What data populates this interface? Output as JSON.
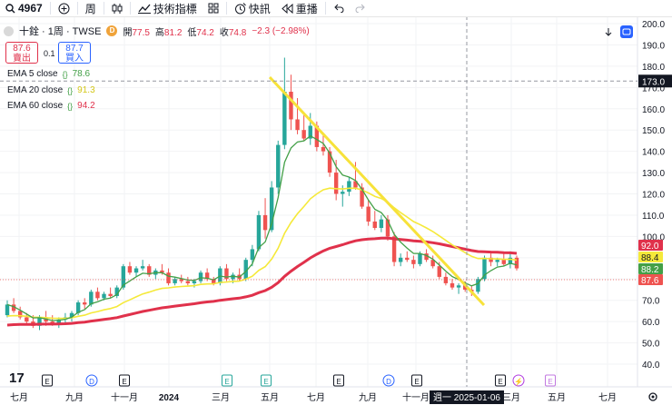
{
  "toolbar": {
    "symbol": "4967",
    "interval": "周",
    "indicators_label": "技術指標",
    "alerts_label": "快訊",
    "replay_label": "重播"
  },
  "legend": {
    "title": "十銓 · 1周 · TWSE",
    "badge": "D",
    "open_label": "開",
    "open": "77.5",
    "high_label": "高",
    "high": "81.2",
    "low_label": "低",
    "low": "74.2",
    "close_label": "收",
    "close": "74.8",
    "change": "−2.3 (−2.98%)"
  },
  "quote": {
    "sell_price": "87.6",
    "sell_label": "賣出",
    "spread": "0.1",
    "buy_price": "87.7",
    "buy_label": "買入"
  },
  "ema": [
    {
      "name": "EMA 5 close",
      "value": "78.6",
      "color": "#43a047"
    },
    {
      "name": "EMA 20 close",
      "value": "91.3",
      "color": "#f5e93a"
    },
    {
      "name": "EMA 60 close",
      "value": "94.2",
      "color": "#e0314b"
    }
  ],
  "crosshair": {
    "date_label": "週一  2025-01-06",
    "price_label": "173.0"
  },
  "colors": {
    "up": "#26a69a",
    "down": "#ef5350",
    "ema5": "#43a047",
    "ema20": "#f5e93a",
    "ema60": "#e0314b",
    "trendline": "#f7e23a"
  },
  "chart_data": {
    "type": "candlestick",
    "x_axis_ticks": [
      "七月",
      "九月",
      "十一月",
      "2024",
      "三月",
      "五月",
      "七月",
      "九月",
      "十一月",
      "三月",
      "五月",
      "七月"
    ],
    "y_axis_ticks": [
      40,
      50,
      60,
      70,
      80,
      90,
      100,
      110,
      120,
      130,
      140,
      150,
      160,
      170,
      180,
      190,
      200
    ],
    "ylim": [
      40,
      200
    ],
    "last_values": {
      "ema20": 92.0,
      "ema5": 88.4,
      "close_high": 88.2,
      "sell": 87.6
    },
    "candles": [
      {
        "o": 63,
        "h": 70,
        "l": 62,
        "c": 68
      },
      {
        "o": 68,
        "h": 71,
        "l": 64,
        "c": 65
      },
      {
        "o": 65,
        "h": 67,
        "l": 61,
        "c": 62
      },
      {
        "o": 62,
        "h": 64,
        "l": 59,
        "c": 60
      },
      {
        "o": 60,
        "h": 63,
        "l": 57,
        "c": 58
      },
      {
        "o": 58,
        "h": 63,
        "l": 56,
        "c": 62
      },
      {
        "o": 62,
        "h": 65,
        "l": 58,
        "c": 60
      },
      {
        "o": 60,
        "h": 63,
        "l": 58,
        "c": 59
      },
      {
        "o": 59,
        "h": 62,
        "l": 57,
        "c": 61
      },
      {
        "o": 61,
        "h": 64,
        "l": 59,
        "c": 62
      },
      {
        "o": 62,
        "h": 65,
        "l": 60,
        "c": 64
      },
      {
        "o": 64,
        "h": 70,
        "l": 63,
        "c": 69
      },
      {
        "o": 69,
        "h": 71,
        "l": 66,
        "c": 68
      },
      {
        "o": 68,
        "h": 75,
        "l": 67,
        "c": 74
      },
      {
        "o": 74,
        "h": 76,
        "l": 70,
        "c": 71
      },
      {
        "o": 71,
        "h": 74,
        "l": 70,
        "c": 73
      },
      {
        "o": 73,
        "h": 76,
        "l": 71,
        "c": 72
      },
      {
        "o": 72,
        "h": 77,
        "l": 71,
        "c": 76
      },
      {
        "o": 76,
        "h": 87,
        "l": 75,
        "c": 86
      },
      {
        "o": 86,
        "h": 88,
        "l": 82,
        "c": 83
      },
      {
        "o": 83,
        "h": 86,
        "l": 81,
        "c": 85
      },
      {
        "o": 85,
        "h": 89,
        "l": 84,
        "c": 86
      },
      {
        "o": 86,
        "h": 87,
        "l": 81,
        "c": 82
      },
      {
        "o": 82,
        "h": 85,
        "l": 80,
        "c": 84
      },
      {
        "o": 84,
        "h": 87,
        "l": 82,
        "c": 83
      },
      {
        "o": 83,
        "h": 85,
        "l": 77,
        "c": 78
      },
      {
        "o": 78,
        "h": 81,
        "l": 77,
        "c": 80
      },
      {
        "o": 80,
        "h": 82,
        "l": 78,
        "c": 79
      },
      {
        "o": 79,
        "h": 81,
        "l": 77,
        "c": 78
      },
      {
        "o": 78,
        "h": 80,
        "l": 76,
        "c": 79
      },
      {
        "o": 79,
        "h": 84,
        "l": 78,
        "c": 83
      },
      {
        "o": 83,
        "h": 85,
        "l": 79,
        "c": 80
      },
      {
        "o": 80,
        "h": 81,
        "l": 77,
        "c": 78
      },
      {
        "o": 78,
        "h": 86,
        "l": 77,
        "c": 85
      },
      {
        "o": 85,
        "h": 87,
        "l": 79,
        "c": 80
      },
      {
        "o": 80,
        "h": 83,
        "l": 78,
        "c": 82
      },
      {
        "o": 82,
        "h": 85,
        "l": 79,
        "c": 80
      },
      {
        "o": 80,
        "h": 90,
        "l": 79,
        "c": 89
      },
      {
        "o": 89,
        "h": 96,
        "l": 86,
        "c": 94
      },
      {
        "o": 94,
        "h": 112,
        "l": 93,
        "c": 110
      },
      {
        "o": 110,
        "h": 118,
        "l": 99,
        "c": 103
      },
      {
        "o": 103,
        "h": 126,
        "l": 102,
        "c": 123
      },
      {
        "o": 123,
        "h": 145,
        "l": 120,
        "c": 143
      },
      {
        "o": 143,
        "h": 184,
        "l": 141,
        "c": 168
      },
      {
        "o": 168,
        "h": 176,
        "l": 150,
        "c": 155
      },
      {
        "o": 155,
        "h": 165,
        "l": 148,
        "c": 150
      },
      {
        "o": 150,
        "h": 157,
        "l": 145,
        "c": 146
      },
      {
        "o": 146,
        "h": 158,
        "l": 143,
        "c": 152
      },
      {
        "o": 152,
        "h": 154,
        "l": 140,
        "c": 142
      },
      {
        "o": 142,
        "h": 148,
        "l": 138,
        "c": 140
      },
      {
        "o": 140,
        "h": 142,
        "l": 128,
        "c": 130
      },
      {
        "o": 130,
        "h": 136,
        "l": 117,
        "c": 120
      },
      {
        "o": 120,
        "h": 124,
        "l": 114,
        "c": 121
      },
      {
        "o": 121,
        "h": 128,
        "l": 119,
        "c": 126
      },
      {
        "o": 126,
        "h": 135,
        "l": 122,
        "c": 123
      },
      {
        "o": 123,
        "h": 125,
        "l": 113,
        "c": 114
      },
      {
        "o": 114,
        "h": 117,
        "l": 105,
        "c": 107
      },
      {
        "o": 107,
        "h": 112,
        "l": 103,
        "c": 104
      },
      {
        "o": 104,
        "h": 110,
        "l": 102,
        "c": 108
      },
      {
        "o": 108,
        "h": 110,
        "l": 98,
        "c": 100
      },
      {
        "o": 100,
        "h": 102,
        "l": 86,
        "c": 88
      },
      {
        "o": 88,
        "h": 92,
        "l": 86,
        "c": 90
      },
      {
        "o": 90,
        "h": 93,
        "l": 88,
        "c": 89
      },
      {
        "o": 89,
        "h": 91,
        "l": 85,
        "c": 87
      },
      {
        "o": 87,
        "h": 93,
        "l": 86,
        "c": 92
      },
      {
        "o": 92,
        "h": 94,
        "l": 88,
        "c": 89
      },
      {
        "o": 89,
        "h": 91,
        "l": 85,
        "c": 86
      },
      {
        "o": 86,
        "h": 88,
        "l": 80,
        "c": 81
      },
      {
        "o": 81,
        "h": 83,
        "l": 77,
        "c": 78
      },
      {
        "o": 78,
        "h": 80,
        "l": 75,
        "c": 76
      },
      {
        "o": 76,
        "h": 78,
        "l": 73,
        "c": 77
      },
      {
        "o": 77,
        "h": 79,
        "l": 74,
        "c": 75
      },
      {
        "o": 75,
        "h": 77,
        "l": 72,
        "c": 74
      },
      {
        "o": 74,
        "h": 81,
        "l": 73,
        "c": 80
      },
      {
        "o": 80,
        "h": 91,
        "l": 79,
        "c": 90
      },
      {
        "o": 90,
        "h": 92,
        "l": 86,
        "c": 88
      },
      {
        "o": 88,
        "h": 90,
        "l": 86,
        "c": 89
      },
      {
        "o": 89,
        "h": 92,
        "l": 86,
        "c": 87
      },
      {
        "o": 87,
        "h": 93,
        "l": 85,
        "c": 90
      },
      {
        "o": 90,
        "h": 91,
        "l": 84,
        "c": 85
      }
    ]
  },
  "events": [
    "E",
    "D",
    "E",
    "E",
    "E",
    "E",
    "D",
    "E",
    "E",
    "⚡",
    "E"
  ]
}
